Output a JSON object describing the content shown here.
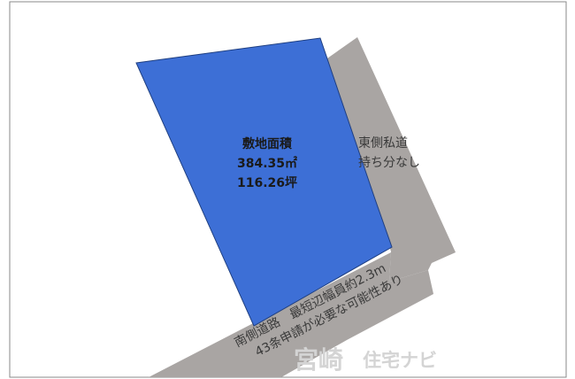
{
  "lot": {
    "title": "敷地面積",
    "area_sqm": "384.35㎡",
    "area_tsubo": "116.26坪",
    "fill": "#3d6fd6",
    "stroke": "#1f3f80"
  },
  "east_road": {
    "line1": "東側私道",
    "line2": "持ち分なし",
    "fill": "#a9a5a3"
  },
  "south_road": {
    "line1": "南側道路　最短辺幅員約2.3m",
    "line2": "43条申請が必要な可能性あり",
    "fill": "#a9a5a3"
  },
  "watermark": {
    "brand": "宮崎",
    "suffix": "住宅ナビ",
    "color": "#d4d4d4"
  },
  "frame_color": "#8a8a8a"
}
